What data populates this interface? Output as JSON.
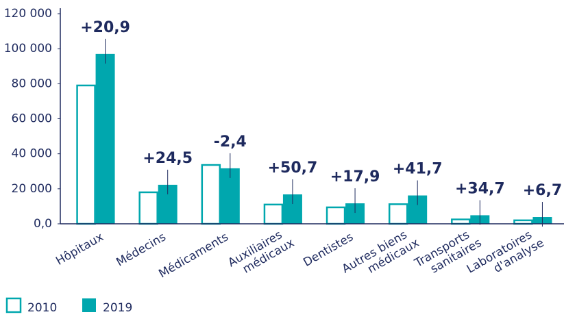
{
  "chart_data": {
    "type": "bar",
    "categories": [
      "Hôpitaux",
      "Médecins",
      "Médicaments",
      "Auxiliaires médicaux",
      "Dentistes",
      "Autres biens médicaux",
      "Transports sanitaires",
      "Laboratoires d'analyse"
    ],
    "series": [
      {
        "name": "2010",
        "color": "#00a7ae",
        "style": "outline",
        "values": [
          79000,
          18000,
          33600,
          11000,
          9400,
          11200,
          2500,
          2000
        ]
      },
      {
        "name": "2019",
        "color": "#00a7ae",
        "style": "filled",
        "values": [
          97000,
          22300,
          31700,
          16800,
          11700,
          16200,
          4900,
          3900
        ]
      }
    ],
    "annotations": [
      "+20,9",
      "+24,5",
      "-2,4",
      "+50,7",
      "+17,9",
      "+41,7",
      "+34,7",
      "+6,7"
    ],
    "ylim": [
      0,
      120000
    ],
    "yticks": [
      {
        "value": 0,
        "label": "0,0"
      },
      {
        "value": 20000,
        "label": "20 000"
      },
      {
        "value": 40000,
        "label": "40 000"
      },
      {
        "value": 60000,
        "label": "60 000"
      },
      {
        "value": 80000,
        "label": "80 000"
      },
      {
        "value": 100000,
        "label": "100 000"
      },
      {
        "value": 120000,
        "label": "120 000"
      }
    ],
    "legend": "bottom-left"
  }
}
